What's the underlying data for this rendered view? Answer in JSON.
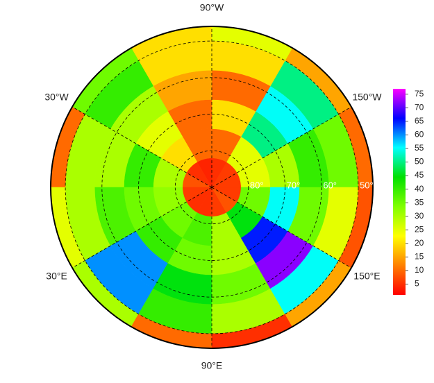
{
  "map": {
    "projection": "north-polar-stereographic",
    "lat_edges": [
      90,
      82,
      74,
      66,
      58,
      50,
      46
    ],
    "lon_edges": [
      -180,
      -150,
      -120,
      -90,
      -60,
      -30,
      0,
      30,
      60,
      90,
      120,
      150,
      180
    ],
    "values": [
      [
        6,
        6,
        5,
        4,
        5,
        8,
        6,
        5,
        5,
        6,
        8,
        6
      ],
      [
        25,
        25,
        10,
        10,
        20,
        30,
        32,
        35,
        38,
        30,
        45,
        35
      ],
      [
        30,
        50,
        20,
        10,
        25,
        40,
        35,
        40,
        35,
        30,
        65,
        55
      ],
      [
        40,
        55,
        10,
        15,
        30,
        30,
        38,
        60,
        45,
        35,
        72,
        35
      ],
      [
        35,
        50,
        20,
        20,
        40,
        30,
        30,
        60,
        40,
        30,
        55,
        25
      ],
      [
        10,
        15,
        25,
        20,
        35,
        10,
        25,
        30,
        10,
        5,
        15,
        8
      ]
    ],
    "meridians": [
      {
        "value": -90,
        "label": "90°W"
      },
      {
        "value": -30,
        "label": "30°W"
      },
      {
        "value": -150,
        "label": "150°W"
      },
      {
        "value": 30,
        "label": "30°E"
      },
      {
        "value": 150,
        "label": "150°E"
      },
      {
        "value": 90,
        "label": "90°E"
      }
    ],
    "parallels": [
      {
        "value": 80,
        "label": "80°"
      },
      {
        "value": 70,
        "label": "70°"
      },
      {
        "value": 60,
        "label": "60°"
      },
      {
        "value": 50,
        "label": "50°"
      }
    ]
  },
  "colorbar": {
    "lim": [
      1,
      77
    ],
    "ticks": [
      5,
      10,
      15,
      20,
      25,
      30,
      35,
      40,
      45,
      50,
      55,
      60,
      65,
      70,
      75
    ],
    "colormap": [
      "#ff0000",
      "#ff8000",
      "#ffff00",
      "#80ff00",
      "#00e000",
      "#00ffff",
      "#0000ff",
      "#ff00ff"
    ]
  }
}
